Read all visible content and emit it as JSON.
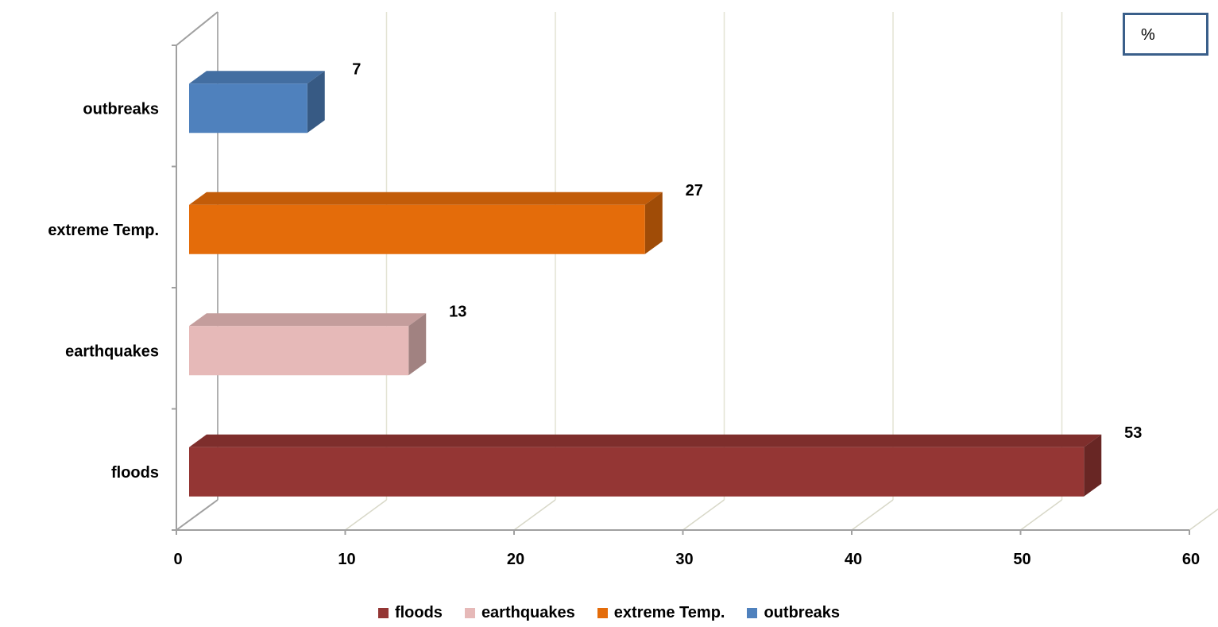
{
  "unit_label": "%",
  "chart_data": {
    "type": "bar",
    "orientation": "horizontal",
    "categories": [
      "floods",
      "earthquakes",
      "extreme Temp.",
      "outbreaks"
    ],
    "values": [
      53,
      13,
      27,
      7
    ],
    "colors": [
      "#943634",
      "#e6b9b8",
      "#e46c0a",
      "#4f81bd"
    ],
    "xlim": [
      0,
      60
    ],
    "xticks": [
      "0",
      "10",
      "20",
      "30",
      "40",
      "50",
      "60"
    ],
    "grid": true,
    "legend_position": "bottom",
    "legend": [
      "floods",
      "earthquakes",
      "extreme Temp.",
      "outbreaks"
    ],
    "data_labels": [
      "53",
      "13",
      "27",
      "7"
    ]
  }
}
